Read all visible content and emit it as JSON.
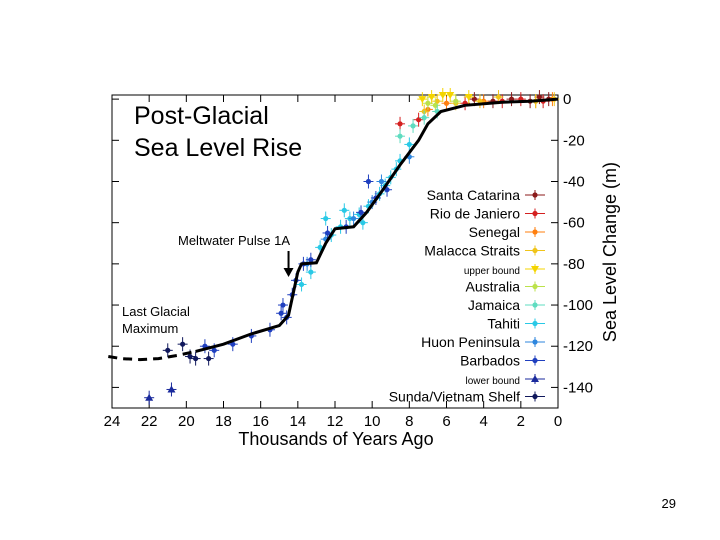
{
  "slide": {
    "page_number": "29"
  },
  "chart_data": {
    "type": "scatter",
    "title_lines": [
      "Post-Glacial",
      "Sea Level Rise"
    ],
    "xlabel": "Thousands of Years Ago",
    "ylabel": "Sea Level Change (m)",
    "xlim": [
      24,
      0
    ],
    "ylim": [
      -150,
      2
    ],
    "x_ticks": [
      "24",
      "22",
      "20",
      "18",
      "16",
      "14",
      "12",
      "10",
      "8",
      "6",
      "4",
      "2",
      "0"
    ],
    "x_tick_values": [
      24,
      22,
      20,
      18,
      16,
      14,
      12,
      10,
      8,
      6,
      4,
      2,
      0
    ],
    "y_ticks": [
      "0",
      "-20",
      "-40",
      "-60",
      "-80",
      "-100",
      "-120",
      "-140"
    ],
    "y_tick_values": [
      0,
      -20,
      -40,
      -60,
      -80,
      -100,
      -120,
      -140
    ],
    "annotations": [
      {
        "id": "mwp",
        "text": "Meltwater Pulse 1A",
        "x": 14.5,
        "y": -78
      },
      {
        "id": "lgm",
        "text_lines": [
          "Last Glacial",
          "Maximum"
        ],
        "x": 21,
        "y": -125
      }
    ],
    "trend_dashed": [
      [
        24.2,
        -125
      ],
      [
        23.5,
        -126
      ],
      [
        22.5,
        -126.5
      ],
      [
        21.5,
        -126
      ],
      [
        20.5,
        -124.5
      ],
      [
        19.5,
        -122.5
      ]
    ],
    "trend_solid": [
      [
        19.5,
        -122.5
      ],
      [
        18,
        -119
      ],
      [
        16.5,
        -114
      ],
      [
        15,
        -110
      ],
      [
        14.5,
        -105
      ],
      [
        14,
        -84
      ],
      [
        13.8,
        -80
      ],
      [
        13,
        -79.5
      ],
      [
        12.5,
        -70
      ],
      [
        12,
        -63
      ],
      [
        11,
        -62
      ],
      [
        10.3,
        -55
      ],
      [
        9.5,
        -45
      ],
      [
        8.5,
        -32
      ],
      [
        7.5,
        -20
      ],
      [
        7,
        -12
      ],
      [
        6.3,
        -6
      ],
      [
        5,
        -3
      ],
      [
        3,
        -1.5
      ],
      [
        1.5,
        -1
      ],
      [
        0,
        0
      ]
    ],
    "series": [
      {
        "name": "Santa Catarina",
        "color": "#8b1a1a",
        "marker": "circle",
        "points": [
          [
            0.5,
            0
          ],
          [
            1.5,
            -1
          ],
          [
            2.5,
            0
          ],
          [
            3.5,
            -1
          ],
          [
            4.5,
            0
          ],
          [
            1,
            1
          ]
        ]
      },
      {
        "name": "Rio de Janiero",
        "color": "#d42020",
        "marker": "circle",
        "points": [
          [
            0.8,
            -1
          ],
          [
            2,
            0
          ],
          [
            3,
            -1
          ],
          [
            5,
            -2
          ],
          [
            7.5,
            -10
          ],
          [
            8.5,
            -12
          ]
        ]
      },
      {
        "name": "Senegal",
        "color": "#ff7f0e",
        "marker": "circle",
        "points": [
          [
            0.3,
            0
          ],
          [
            1.2,
            -1
          ],
          [
            4,
            -1
          ],
          [
            6,
            -2
          ],
          [
            7,
            -5
          ]
        ]
      },
      {
        "name": "Malacca Straits",
        "color": "#f0c419",
        "marker": "circle",
        "points": [
          [
            0.2,
            0
          ],
          [
            1.2,
            -1
          ],
          [
            3.2,
            1
          ],
          [
            4.2,
            -1
          ],
          [
            5.5,
            -2
          ],
          [
            6.5,
            -1
          ],
          [
            7.2,
            -6
          ]
        ]
      },
      {
        "name": "upper bound",
        "color": "#f4d400",
        "marker": "triangle-down",
        "points": [
          [
            6.2,
            2
          ],
          [
            6.8,
            1
          ],
          [
            7.3,
            0
          ],
          [
            5.8,
            2
          ],
          [
            4.8,
            1
          ]
        ]
      },
      {
        "name": "Australia",
        "color": "#bce24a",
        "marker": "circle",
        "points": [
          [
            5.5,
            -1
          ],
          [
            6.6,
            -3
          ],
          [
            7,
            -2
          ]
        ]
      },
      {
        "name": "Jamaica",
        "color": "#5fdcc0",
        "marker": "circle",
        "points": [
          [
            6.5,
            -6
          ],
          [
            7.2,
            -9
          ],
          [
            7.8,
            -13
          ],
          [
            8.5,
            -18
          ]
        ]
      },
      {
        "name": "Tahiti",
        "color": "#29c9e6",
        "marker": "circle",
        "points": [
          [
            13.8,
            -90
          ],
          [
            13.3,
            -84
          ],
          [
            12.8,
            -72
          ],
          [
            12.2,
            -66
          ],
          [
            11.7,
            -62
          ],
          [
            11.2,
            -58
          ],
          [
            10.7,
            -56
          ],
          [
            10.2,
            -52
          ],
          [
            9.6,
            -46
          ],
          [
            9,
            -38
          ],
          [
            8.5,
            -30
          ],
          [
            8,
            -22
          ],
          [
            10.5,
            -60
          ],
          [
            11.5,
            -54
          ],
          [
            12.5,
            -58
          ],
          [
            9.3,
            -42
          ],
          [
            8.7,
            -34
          ]
        ]
      },
      {
        "name": "Huon Peninsula",
        "color": "#2e86de",
        "marker": "circle",
        "points": [
          [
            8,
            -28
          ],
          [
            9.5,
            -40
          ],
          [
            11,
            -58
          ],
          [
            12.5,
            -68
          ],
          [
            13.5,
            -80
          ],
          [
            10,
            -50
          ]
        ]
      },
      {
        "name": "Barbados",
        "color": "#1f3fbf",
        "marker": "circle",
        "points": [
          [
            19,
            -120
          ],
          [
            18.5,
            -122
          ],
          [
            17.5,
            -119
          ],
          [
            16.5,
            -115
          ],
          [
            15.5,
            -112
          ],
          [
            14.8,
            -100
          ],
          [
            14.6,
            -106
          ],
          [
            14.3,
            -95
          ],
          [
            14.1,
            -88
          ],
          [
            13.7,
            -80
          ],
          [
            13.3,
            -78
          ],
          [
            12.4,
            -65
          ],
          [
            11.4,
            -62
          ],
          [
            10.6,
            -55
          ],
          [
            9.8,
            -48
          ],
          [
            9.2,
            -44
          ],
          [
            10.2,
            -40
          ],
          [
            14.9,
            -104
          ]
        ]
      },
      {
        "name": "lower bound",
        "color": "#1a2a9c",
        "marker": "triangle",
        "points": [
          [
            22,
            -145
          ],
          [
            20.8,
            -141
          ]
        ]
      },
      {
        "name": "Sunda/Vietnam Shelf",
        "color": "#10185c",
        "marker": "circle",
        "points": [
          [
            21,
            -122
          ],
          [
            19.8,
            -125
          ],
          [
            18.8,
            -126
          ],
          [
            20.2,
            -119
          ],
          [
            19.5,
            -126
          ]
        ]
      }
    ]
  }
}
